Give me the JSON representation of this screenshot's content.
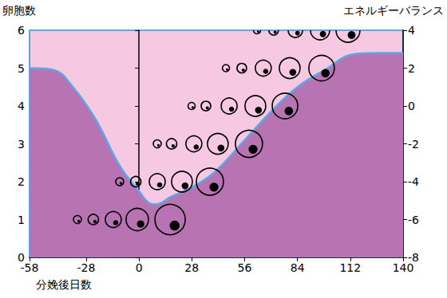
{
  "chart_data": {
    "type": "line",
    "ylabel": "卵胞数",
    "y2label": "エネルギーバランス",
    "xlabel": "分娩後日数",
    "xlim": [
      -58,
      140
    ],
    "xticks": [
      -58,
      -28,
      0,
      28,
      56,
      84,
      112,
      140
    ],
    "ylim": [
      0,
      6
    ],
    "yticks": [
      0,
      1,
      2,
      3,
      4,
      5,
      6
    ],
    "y2lim": [
      -8,
      4
    ],
    "y2ticks": [
      -8,
      -6,
      -4,
      -2,
      0,
      2,
      4
    ],
    "grid": false,
    "series": [
      {
        "name": "エネルギーバランス",
        "type": "line",
        "axis": "y2",
        "color": "#5aa9e6",
        "x": [
          -58,
          -45,
          -35,
          -23,
          -10,
          0,
          5,
          9,
          17,
          28,
          40,
          56,
          70,
          84,
          100,
          112,
          125,
          140
        ],
        "values": [
          2.0,
          1.9,
          1.0,
          -0.7,
          -3.2,
          -4.5,
          -5.1,
          -5.2,
          -4.8,
          -4.3,
          -3.5,
          -1.8,
          -0.3,
          1.0,
          2.0,
          2.7,
          2.8,
          2.8
        ]
      },
      {
        "name": "卵胞数",
        "type": "scatter",
        "marker": "follicle",
        "color": "#000000",
        "x": [
          -32.6,
          -24.2,
          -13.6,
          -0.9,
          16.5,
          -10.2,
          -1.7,
          9.7,
          22.8,
          37.6,
          9.7,
          17.3,
          29.1,
          41.8,
          58.3,
          27.9,
          35.5,
          47.8,
          61.7,
          77.4,
          46.1,
          54.5,
          65.9,
          79.9,
          96.8,
          62.6,
          71.4,
          82.9,
          96.0,
          110.8
        ],
        "values": [
          1,
          1,
          1,
          1,
          1,
          2,
          2,
          2,
          2,
          2,
          3,
          3,
          3,
          3,
          3,
          4,
          4,
          4,
          4,
          4,
          5,
          5,
          5,
          5,
          5,
          6,
          6,
          6,
          6,
          6
        ],
        "sizes": [
          10,
          13,
          20,
          28,
          38,
          10,
          13,
          20,
          26,
          34,
          10,
          13,
          20,
          26,
          34,
          9,
          12,
          20,
          26,
          32,
          9,
          12,
          20,
          26,
          32,
          9,
          12,
          18,
          24,
          30
        ]
      }
    ]
  }
}
